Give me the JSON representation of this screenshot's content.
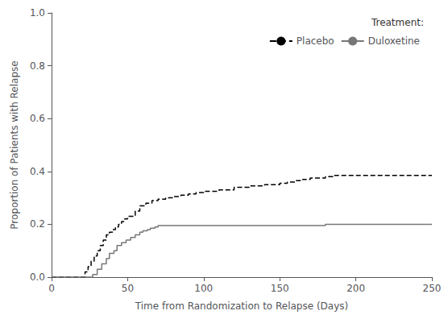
{
  "chart_data": {
    "type": "step",
    "xlabel": "Time from Randomization to Relapse (Days)",
    "ylabel": "Proportion of Patients with Relapse",
    "legend_title": "Treatment:",
    "legend": "upper right",
    "grid": false,
    "xlim": [
      0,
      250
    ],
    "ylim": [
      0,
      1.0
    ],
    "xticks": [
      0,
      50,
      100,
      150,
      200,
      250
    ],
    "yticks": [
      {
        "value": 0.0,
        "label": "0.0"
      },
      0.2,
      0.4,
      0.6,
      0.8,
      {
        "value": 1.0,
        "label": "1.0"
      }
    ],
    "series": [
      {
        "name": "Placebo",
        "color": "#000000",
        "line_style": "dashed",
        "x": [
          0,
          20,
          22,
          24,
          26,
          28,
          30,
          32,
          34,
          36,
          38,
          40,
          42,
          44,
          46,
          48,
          50,
          55,
          58,
          62,
          66,
          70,
          75,
          80,
          85,
          90,
          95,
          100,
          110,
          120,
          130,
          140,
          150,
          155,
          160,
          165,
          170,
          175,
          180,
          185,
          190,
          195,
          200,
          250
        ],
        "values": [
          0,
          0,
          0.02,
          0.04,
          0.06,
          0.08,
          0.1,
          0.12,
          0.14,
          0.16,
          0.17,
          0.18,
          0.19,
          0.2,
          0.21,
          0.22,
          0.23,
          0.25,
          0.27,
          0.28,
          0.29,
          0.295,
          0.3,
          0.305,
          0.31,
          0.315,
          0.32,
          0.325,
          0.33,
          0.34,
          0.345,
          0.35,
          0.355,
          0.36,
          0.365,
          0.37,
          0.375,
          0.375,
          0.38,
          0.385,
          0.385,
          0.385,
          0.385,
          0.385
        ]
      },
      {
        "name": "Duloxetine",
        "color": "#777777",
        "line_style": "solid",
        "x": [
          0,
          25,
          27,
          30,
          33,
          36,
          38,
          41,
          43,
          46,
          49,
          52,
          55,
          58,
          60,
          63,
          65,
          68,
          70,
          75,
          80,
          90,
          100,
          110,
          120,
          130,
          140,
          150,
          160,
          170,
          180,
          190,
          195,
          200,
          250
        ],
        "values": [
          0,
          0,
          0.01,
          0.03,
          0.05,
          0.07,
          0.09,
          0.1,
          0.12,
          0.13,
          0.14,
          0.15,
          0.16,
          0.17,
          0.175,
          0.18,
          0.185,
          0.19,
          0.195,
          0.195,
          0.195,
          0.195,
          0.195,
          0.195,
          0.195,
          0.195,
          0.195,
          0.195,
          0.195,
          0.195,
          0.2,
          0.2,
          0.2,
          0.2,
          0.2
        ]
      }
    ]
  }
}
